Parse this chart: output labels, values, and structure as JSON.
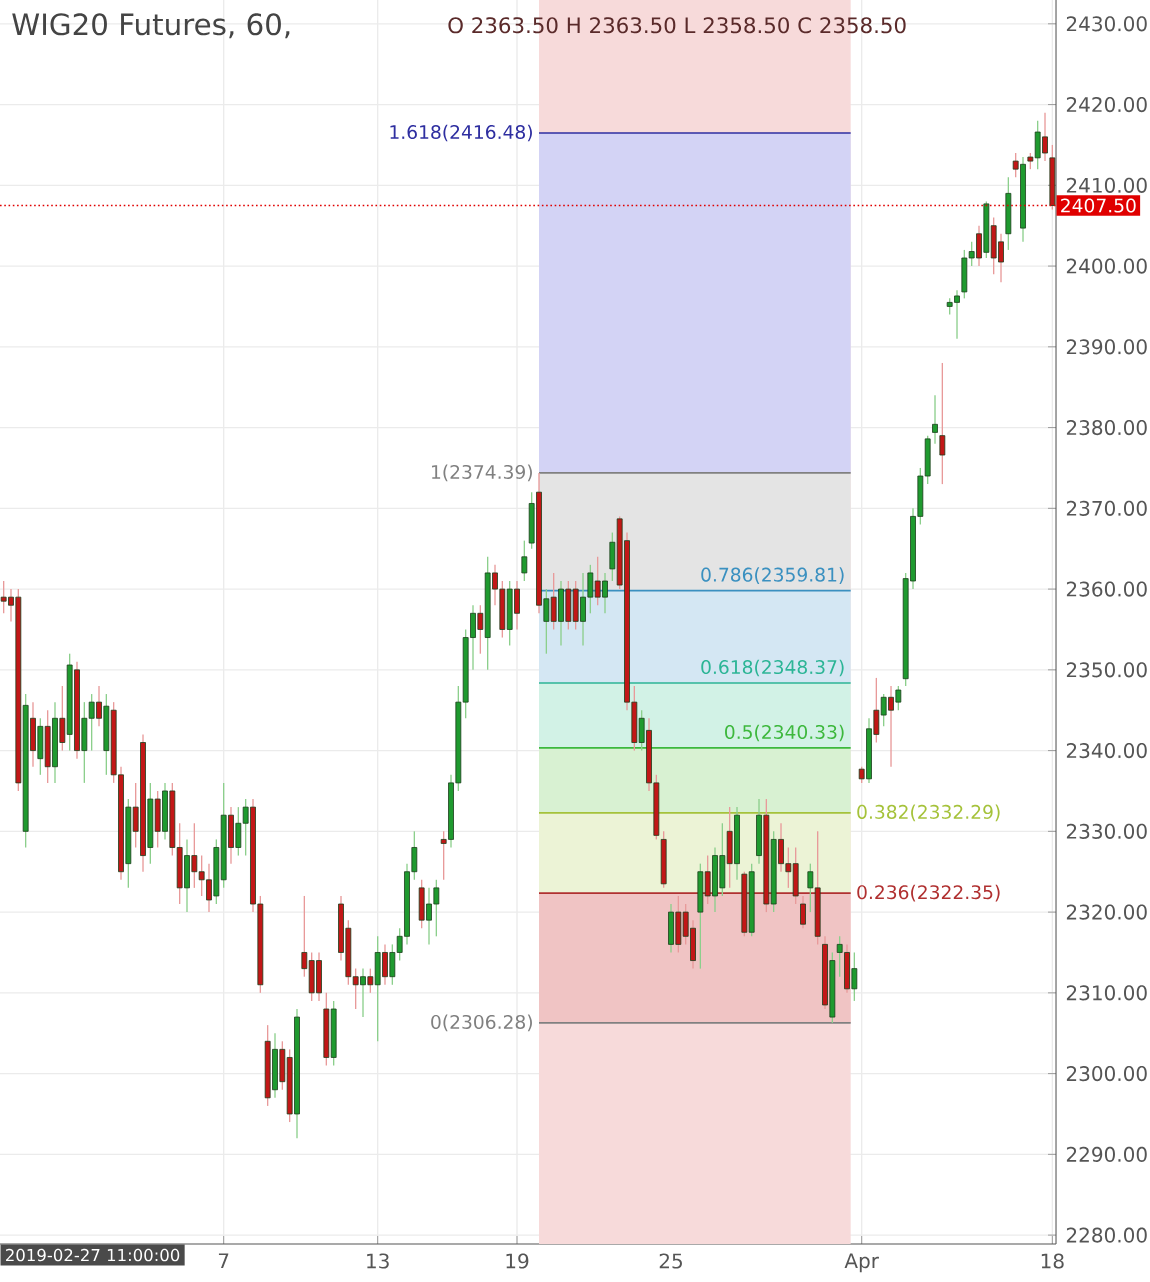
{
  "chart_data": {
    "type": "candlestick",
    "title": "WIG20 Futures, 60,",
    "subtitle": "O 2363.50 H 2363.50 L 2358.50 C 2358.50",
    "annotations": [
      "2019-02-27 11:00:00"
    ],
    "categories": [
      null,
      null,
      null,
      null,
      null,
      null,
      null,
      null,
      null,
      null,
      null,
      null,
      null,
      null,
      null,
      null,
      null,
      null,
      null,
      null,
      null,
      null,
      null,
      null,
      null,
      null,
      null,
      null,
      null,
      null,
      "7",
      null,
      null,
      null,
      null,
      null,
      null,
      null,
      null,
      null,
      null,
      null,
      null,
      null,
      null,
      null,
      null,
      null,
      null,
      null,
      null,
      "13",
      null,
      null,
      null,
      null,
      null,
      null,
      null,
      null,
      null,
      null,
      null,
      null,
      null,
      null,
      null,
      null,
      null,
      null,
      "19",
      null,
      null,
      null,
      null,
      null,
      null,
      null,
      null,
      null,
      null,
      null,
      null,
      null,
      null,
      null,
      null,
      null,
      null,
      null,
      null,
      "25",
      null,
      null,
      null,
      null,
      null,
      null,
      null,
      null,
      null,
      null,
      null,
      null,
      null,
      null,
      null,
      null,
      null,
      null,
      null,
      null,
      null,
      null,
      null,
      null,
      null,
      "Apr",
      null,
      null,
      null,
      null,
      null,
      null,
      null,
      null,
      null,
      null,
      null,
      null,
      null,
      null,
      null,
      null,
      null,
      null,
      null,
      null,
      null,
      null,
      null,
      null,
      null,
      "18"
    ],
    "ohlc": [
      [
        2359,
        2361,
        2357,
        2358.5
      ],
      [
        2359,
        2360,
        2356,
        2358
      ],
      [
        2359,
        2360,
        2335,
        2336
      ],
      [
        2330,
        2347,
        2328,
        2345.6
      ],
      [
        2344,
        2346,
        2338,
        2340
      ],
      [
        2339,
        2344,
        2337,
        2343
      ],
      [
        2343,
        2345,
        2336,
        2338
      ],
      [
        2338,
        2346,
        2336,
        2344
      ],
      [
        2344,
        2348,
        2340,
        2341
      ],
      [
        2342,
        2352,
        2340,
        2350.6
      ],
      [
        2350,
        2351,
        2339,
        2340
      ],
      [
        2340,
        2346,
        2336,
        2344
      ],
      [
        2344,
        2347,
        2340,
        2346
      ],
      [
        2346,
        2348,
        2343,
        2344
      ],
      [
        2340,
        2347,
        2337,
        2345.5
      ],
      [
        2345,
        2346,
        2336,
        2337
      ],
      [
        2337,
        2338,
        2324,
        2325
      ],
      [
        2326,
        2334,
        2323,
        2333
      ],
      [
        2333,
        2336,
        2328,
        2330
      ],
      [
        2341,
        2342,
        2325,
        2327
      ],
      [
        2328,
        2336,
        2326,
        2334
      ],
      [
        2334,
        2335,
        2328,
        2330
      ],
      [
        2330,
        2336,
        2329,
        2335
      ],
      [
        2335,
        2336,
        2327,
        2328
      ],
      [
        2328,
        2331,
        2321,
        2323
      ],
      [
        2323,
        2329,
        2320,
        2327
      ],
      [
        2327,
        2331,
        2323,
        2325
      ],
      [
        2325,
        2327,
        2322,
        2324
      ],
      [
        2324,
        2326,
        2320,
        2321.5
      ],
      [
        2322,
        2329,
        2321,
        2328
      ],
      [
        2324,
        2336,
        2323,
        2332
      ],
      [
        2332,
        2333,
        2326,
        2328
      ],
      [
        2328,
        2333,
        2327,
        2331
      ],
      [
        2331,
        2334,
        2327,
        2333
      ],
      [
        2333,
        2334,
        2320,
        2321
      ],
      [
        2321,
        2322,
        2310,
        2311
      ],
      [
        2304,
        2306,
        2296,
        2297
      ],
      [
        2298,
        2305,
        2297,
        2303
      ],
      [
        2303,
        2304,
        2298,
        2299
      ],
      [
        2302,
        2303,
        2294,
        2295
      ],
      [
        2295,
        2308,
        2292,
        2307
      ],
      [
        2315,
        2322,
        2312,
        2313
      ],
      [
        2314,
        2315,
        2309,
        2310
      ],
      [
        2314,
        2315,
        2309,
        2310
      ],
      [
        2308,
        2310,
        2301,
        2302
      ],
      [
        2302,
        2309,
        2301,
        2308
      ],
      [
        2321,
        2322,
        2314,
        2315
      ],
      [
        2318,
        2319,
        2311,
        2312
      ],
      [
        2312,
        2313,
        2308,
        2311
      ],
      [
        2311,
        2313,
        2307,
        2312
      ],
      [
        2312,
        2313,
        2310,
        2311
      ],
      [
        2311,
        2317,
        2304,
        2315
      ],
      [
        2315,
        2316,
        2311,
        2312
      ],
      [
        2312,
        2316,
        2311,
        2315
      ],
      [
        2315,
        2318,
        2314,
        2317
      ],
      [
        2317,
        2326,
        2316,
        2325
      ],
      [
        2325,
        2330,
        2324,
        2328
      ],
      [
        2323,
        2324,
        2318,
        2319
      ],
      [
        2319,
        2323,
        2316,
        2321
      ],
      [
        2321,
        2324,
        2317,
        2323
      ],
      [
        2329,
        2330,
        2324,
        2328.5
      ],
      [
        2329,
        2337,
        2328,
        2336
      ],
      [
        2336,
        2348,
        2335,
        2346
      ],
      [
        2346,
        2355,
        2344,
        2354
      ],
      [
        2354,
        2358,
        2350,
        2357
      ],
      [
        2357,
        2358,
        2352,
        2355
      ],
      [
        2354,
        2364,
        2350,
        2362
      ],
      [
        2362,
        2363,
        2358,
        2360
      ],
      [
        2360,
        2361,
        2354,
        2355
      ],
      [
        2355,
        2361,
        2353,
        2360
      ],
      [
        2360,
        2361,
        2355,
        2357
      ],
      [
        2362,
        2366,
        2361,
        2364
      ],
      [
        2365.7,
        2372,
        2365,
        2370.6
      ],
      [
        2372,
        2374.39,
        2357,
        2358
      ],
      [
        2356,
        2360,
        2352,
        2358.8
      ],
      [
        2359,
        2362,
        2355,
        2356
      ],
      [
        2356,
        2361,
        2353,
        2360
      ],
      [
        2360,
        2361,
        2355,
        2356
      ],
      [
        2360,
        2361,
        2355,
        2356
      ],
      [
        2356,
        2362,
        2353,
        2359
      ],
      [
        2359,
        2363,
        2357,
        2362
      ],
      [
        2361,
        2364,
        2358,
        2359
      ],
      [
        2359,
        2362,
        2357,
        2361
      ],
      [
        2362.5,
        2367,
        2361,
        2365.8
      ],
      [
        2368.7,
        2369,
        2360,
        2360.5
      ],
      [
        2366,
        2367,
        2345,
        2346
      ],
      [
        2346,
        2348,
        2340,
        2341
      ],
      [
        2341,
        2345,
        2340,
        2344
      ],
      [
        2342.5,
        2344,
        2335,
        2336
      ],
      [
        2336,
        2337,
        2329,
        2329.5
      ],
      [
        2329,
        2330,
        2323,
        2323.5
      ],
      [
        2316,
        2321,
        2315,
        2320
      ],
      [
        2320,
        2322,
        2315,
        2316
      ],
      [
        2320,
        2321,
        2316,
        2317
      ],
      [
        2318,
        2319,
        2313,
        2314
      ],
      [
        2320,
        2326,
        2313,
        2325
      ],
      [
        2325,
        2327,
        2321,
        2322
      ],
      [
        2322,
        2328,
        2320,
        2327
      ],
      [
        2323,
        2331,
        2322,
        2327
      ],
      [
        2330,
        2333,
        2323,
        2326
      ],
      [
        2326,
        2333,
        2324,
        2332
      ],
      [
        2324.7,
        2325,
        2317,
        2317.5
      ],
      [
        2317.5,
        2326,
        2317,
        2325
      ],
      [
        2327,
        2334,
        2326,
        2332
      ],
      [
        2332,
        2334,
        2320,
        2321
      ],
      [
        2321,
        2330,
        2320,
        2329
      ],
      [
        2329,
        2331,
        2325,
        2326
      ],
      [
        2326,
        2328,
        2323,
        2325
      ],
      [
        2326,
        2328,
        2321,
        2322
      ],
      [
        2321,
        2322,
        2318,
        2318.5
      ],
      [
        2323,
        2326,
        2320,
        2325
      ],
      [
        2323,
        2330,
        2316,
        2317
      ],
      [
        2316,
        2317,
        2308,
        2308.5
      ],
      [
        2307,
        2315,
        2306.28,
        2314
      ],
      [
        2315,
        2317,
        2312,
        2316
      ],
      [
        2315,
        2316,
        2310,
        2310.5
      ],
      [
        2310.5,
        2315,
        2309,
        2313
      ],
      [
        2337.7,
        2338,
        2336,
        2336.5
      ],
      [
        2336.5,
        2344,
        2336,
        2342.7
      ],
      [
        2345,
        2349,
        2341,
        2342
      ],
      [
        2344.4,
        2347,
        2343,
        2346.6
      ],
      [
        2346.6,
        2348,
        2338,
        2345
      ],
      [
        2346,
        2348,
        2345,
        2347.5
      ],
      [
        2348.9,
        2362,
        2348,
        2361.3
      ],
      [
        2361,
        2370,
        2360,
        2369
      ],
      [
        2369,
        2375,
        2368,
        2374
      ],
      [
        2374,
        2379,
        2373,
        2378.6
      ],
      [
        2379.4,
        2384,
        2378,
        2380.4
      ],
      [
        2379,
        2388,
        2373,
        2376.6
      ],
      [
        2395,
        2396,
        2394,
        2395.5
      ],
      [
        2395.5,
        2397,
        2391,
        2396.3
      ],
      [
        2396.8,
        2402,
        2396,
        2401
      ],
      [
        2401,
        2403,
        2400,
        2401.8
      ],
      [
        2404,
        2405,
        2400,
        2401
      ],
      [
        2401.7,
        2408,
        2401,
        2407.7
      ],
      [
        2405,
        2406,
        2399,
        2401
      ],
      [
        2403,
        2404,
        2398,
        2400.5
      ],
      [
        2404,
        2411,
        2402,
        2409
      ],
      [
        2413,
        2414,
        2411,
        2412
      ],
      [
        2404.7,
        2413.5,
        2403,
        2412.6
      ],
      [
        2413.5,
        2414,
        2412,
        2413
      ],
      [
        2413.4,
        2418,
        2412,
        2416.6
      ],
      [
        2416,
        2419,
        2413,
        2414
      ],
      [
        2413.4,
        2415,
        2407,
        2407.5
      ]
    ],
    "ylim": [
      2278.9,
      2432.95
    ],
    "yticks": [
      {
        "value": 2280,
        "label": "2280.00"
      },
      {
        "value": 2290,
        "label": "2290.00"
      },
      {
        "value": 2300,
        "label": "2300.00"
      },
      {
        "value": 2310,
        "label": "2310.00"
      },
      {
        "value": 2320,
        "label": "2320.00"
      },
      {
        "value": 2330,
        "label": "2330.00"
      },
      {
        "value": 2340,
        "label": "2340.00"
      },
      {
        "value": 2350,
        "label": "2350.00"
      },
      {
        "value": 2360,
        "label": "2360.00"
      },
      {
        "value": 2370,
        "label": "2370.00"
      },
      {
        "value": 2380,
        "label": "2380.00"
      },
      {
        "value": 2390,
        "label": "2390.00"
      },
      {
        "value": 2400,
        "label": "2400.00"
      },
      {
        "value": 2410,
        "label": "2410.00"
      },
      {
        "value": 2420,
        "label": "2420.00"
      },
      {
        "value": 2430,
        "label": "2430.00"
      }
    ],
    "bands": [
      {
        "axis": "y",
        "from": 2374.39,
        "to": 2416.48,
        "color": "#d3d3f5"
      },
      {
        "axis": "y",
        "from": 2359.81,
        "to": 2374.39,
        "color": "#e4e4e4"
      },
      {
        "axis": "y",
        "from": 2348.37,
        "to": 2359.81,
        "color": "#d4e7f3"
      },
      {
        "axis": "y",
        "from": 2340.33,
        "to": 2348.37,
        "color": "#d2f2e6"
      },
      {
        "axis": "y",
        "from": 2332.29,
        "to": 2340.33,
        "color": "#d8f1d2"
      },
      {
        "axis": "y",
        "from": 2322.35,
        "to": 2332.29,
        "color": "#ecf3d6"
      },
      {
        "axis": "y",
        "from": 2306.28,
        "to": 2322.35,
        "color": "#f0c4c4"
      }
    ],
    "ref_lines": [
      {
        "axis": "y",
        "value": 2416.48,
        "label": "1.618(2416.48)",
        "color": "#2e2ea0",
        "line_style": "solid"
      },
      {
        "axis": "y",
        "value": 2374.39,
        "label": "1(2374.39)",
        "color": "#808080",
        "line_style": "solid"
      },
      {
        "axis": "y",
        "value": 2359.81,
        "label": "0.786(2359.81)",
        "color": "#3a90c0",
        "line_style": "solid"
      },
      {
        "axis": "y",
        "value": 2348.37,
        "label": "0.618(2348.37)",
        "color": "#2cb596",
        "line_style": "solid"
      },
      {
        "axis": "y",
        "value": 2340.33,
        "label": "0.5(2340.33)",
        "color": "#3db83d",
        "line_style": "solid"
      },
      {
        "axis": "y",
        "value": 2332.29,
        "label": "0.382(2332.29)",
        "color": "#a5c23a",
        "line_style": "solid"
      },
      {
        "axis": "y",
        "value": 2322.35,
        "label": "0.236(2322.35)",
        "color": "#b03030",
        "line_style": "solid"
      },
      {
        "axis": "y",
        "value": 2306.28,
        "label": "0(2306.28)",
        "color": "#808080",
        "line_style": "solid"
      },
      {
        "axis": "y",
        "value": 2407.5,
        "label": "2407.50",
        "color": "#e00000",
        "line_style": "dotted"
      }
    ],
    "grid": true
  }
}
